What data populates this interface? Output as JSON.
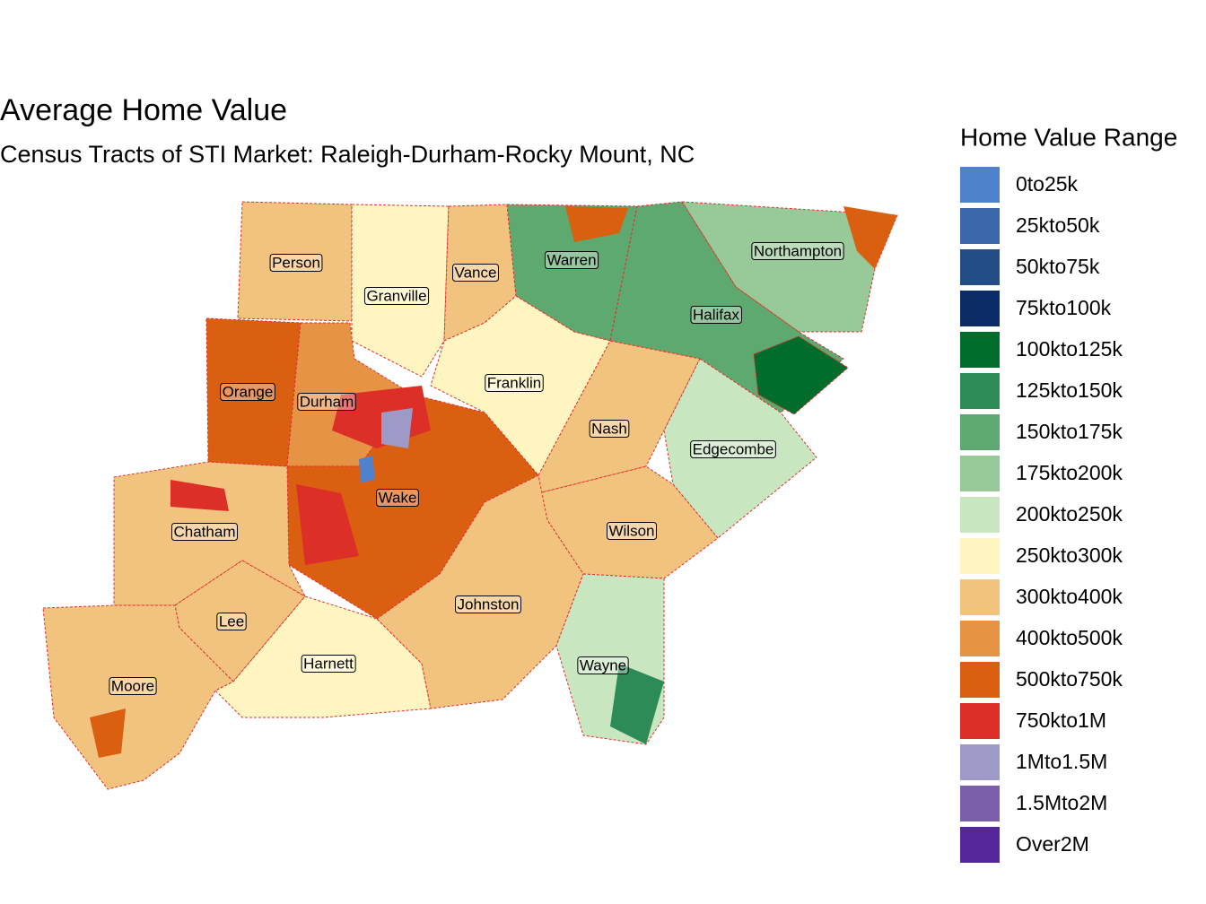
{
  "title": "Average Home Value",
  "subtitle": "Census Tracts of STI Market: Raleigh-Durham-Rocky Mount, NC",
  "legend": {
    "title": "Home Value Range",
    "items": [
      {
        "label": "0to25k",
        "color": "#4f81cd"
      },
      {
        "label": "25kto50k",
        "color": "#3a68aa"
      },
      {
        "label": "50kto75k",
        "color": "#234d87"
      },
      {
        "label": "75kto100k",
        "color": "#0b2c67"
      },
      {
        "label": "100kto125k",
        "color": "#006d2c"
      },
      {
        "label": "125kto150k",
        "color": "#2e8b57"
      },
      {
        "label": "150kto175k",
        "color": "#5ea96f"
      },
      {
        "label": "175kto200k",
        "color": "#98c998"
      },
      {
        "label": "200kto250k",
        "color": "#c8e6c0"
      },
      {
        "label": "250kto300k",
        "color": "#fff5c0"
      },
      {
        "label": "300kto400k",
        "color": "#f2c27f"
      },
      {
        "label": "400kto500k",
        "color": "#e69345"
      },
      {
        "label": "500kto750k",
        "color": "#db5f11"
      },
      {
        "label": "750kto1M",
        "color": "#dc2f28"
      },
      {
        "label": "1Mto1.5M",
        "color": "#9e9ac8"
      },
      {
        "label": "1.5Mto2M",
        "color": "#7b5fab"
      },
      {
        "label": "Over2M",
        "color": "#55279a"
      }
    ]
  },
  "counties": [
    "Person",
    "Granville",
    "Vance",
    "Warren",
    "Northampton",
    "Halifax",
    "Orange",
    "Durham",
    "Franklin",
    "Nash",
    "Edgecombe",
    "Wake",
    "Chatham",
    "Wilson",
    "Johnston",
    "Lee",
    "Harnett",
    "Wayne",
    "Moore"
  ]
}
